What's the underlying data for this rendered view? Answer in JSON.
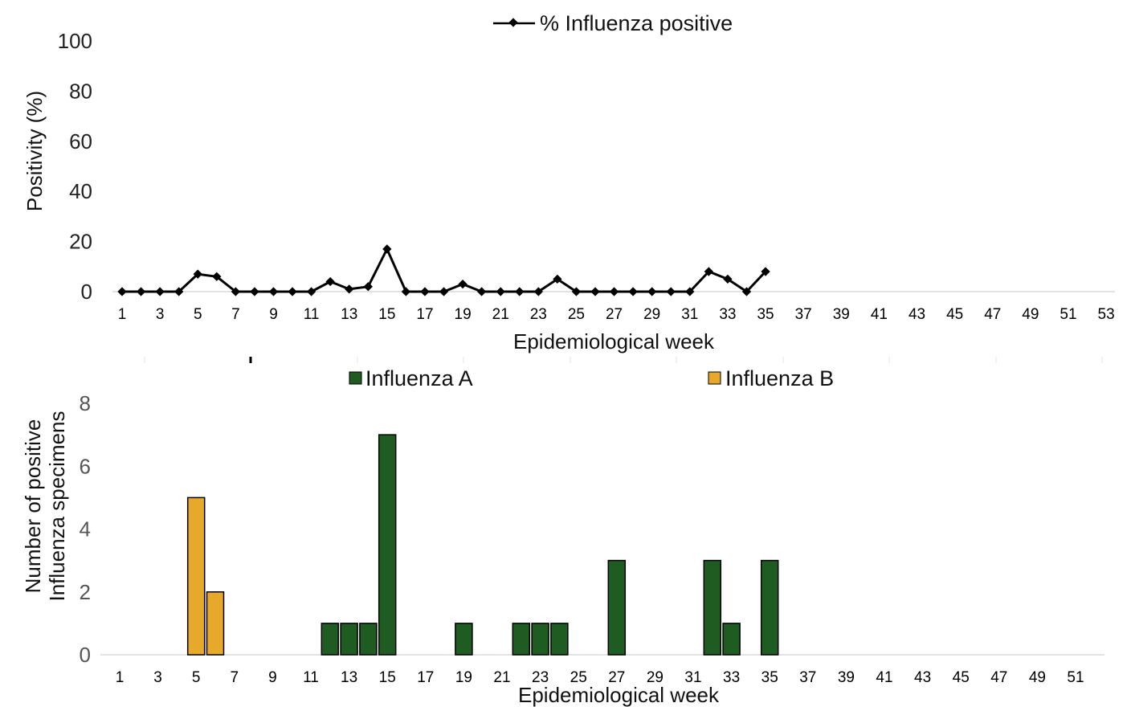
{
  "chart_data": [
    {
      "type": "line",
      "legend": "% Influenza positive",
      "ylabel": "Positivity (%)",
      "xlabel": "Epidemiological week",
      "ylim": [
        0,
        100
      ],
      "yticks": [
        0,
        20,
        40,
        60,
        80,
        100
      ],
      "xticks": [
        1,
        3,
        5,
        7,
        9,
        11,
        13,
        15,
        17,
        19,
        21,
        23,
        25,
        27,
        29,
        31,
        33,
        35,
        37,
        39,
        41,
        43,
        45,
        47,
        49,
        51,
        53
      ],
      "series": [
        {
          "name": "% Influenza positive",
          "color": "#000000",
          "x": [
            1,
            2,
            3,
            4,
            5,
            6,
            7,
            8,
            9,
            10,
            11,
            12,
            13,
            14,
            15,
            16,
            17,
            18,
            19,
            20,
            21,
            22,
            23,
            24,
            25,
            26,
            27,
            28,
            29,
            30,
            31,
            32,
            33,
            34,
            35
          ],
          "values": [
            0,
            0,
            0,
            0,
            7,
            6,
            0,
            0,
            0,
            0,
            0,
            4,
            1,
            2,
            17,
            0,
            0,
            0,
            3,
            0,
            0,
            0,
            0,
            5,
            0,
            0,
            0,
            0,
            0,
            0,
            0,
            8,
            5,
            0,
            8
          ]
        }
      ]
    },
    {
      "type": "bar",
      "ylabel": [
        "Number of positive",
        "Influenza specimens"
      ],
      "xlabel": "Epidemiological week",
      "ylim": [
        0,
        8
      ],
      "yticks": [
        0,
        2,
        4,
        6,
        8
      ],
      "xticks": [
        1,
        3,
        5,
        7,
        9,
        11,
        13,
        15,
        17,
        19,
        21,
        23,
        25,
        27,
        29,
        31,
        33,
        35,
        37,
        39,
        41,
        43,
        45,
        47,
        49,
        51
      ],
      "series": [
        {
          "name": "Influenza A",
          "color": "#1e5c22",
          "x": [
            12,
            13,
            14,
            15,
            19,
            22,
            23,
            24,
            27,
            32,
            33,
            35
          ],
          "values": [
            1,
            1,
            1,
            7,
            1,
            1,
            1,
            1,
            3,
            3,
            1,
            3
          ]
        },
        {
          "name": "Influenza B",
          "color": "#e6a92b",
          "x": [
            5,
            6
          ],
          "values": [
            5,
            2
          ]
        }
      ]
    }
  ]
}
